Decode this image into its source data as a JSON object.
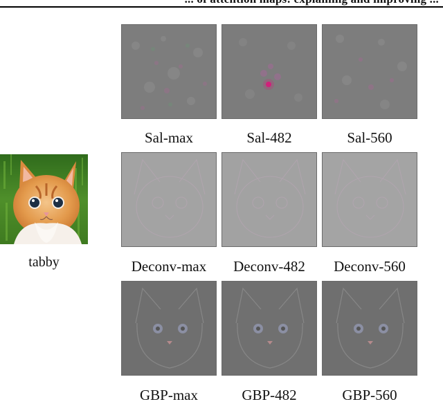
{
  "header": {
    "text": "... of attention maps: explaining and improving ..."
  },
  "input": {
    "label": "tabby"
  },
  "rows": [
    {
      "method": "saliency",
      "panels": [
        {
          "label": "Sal-max"
        },
        {
          "label": "Sal-482"
        },
        {
          "label": "Sal-560"
        }
      ]
    },
    {
      "method": "deconvnet",
      "panels": [
        {
          "label": "Deconv-max"
        },
        {
          "label": "Deconv-482"
        },
        {
          "label": "Deconv-560"
        }
      ]
    },
    {
      "method": "guided-backprop",
      "panels": [
        {
          "label": "GBP-max"
        },
        {
          "label": "GBP-482"
        },
        {
          "label": "GBP-560"
        }
      ]
    }
  ],
  "colors": {
    "saliency_bg": "#7d7d7d",
    "deconv_bg": "#a3a3a3",
    "gbp_bg": "#6f6f6f"
  }
}
